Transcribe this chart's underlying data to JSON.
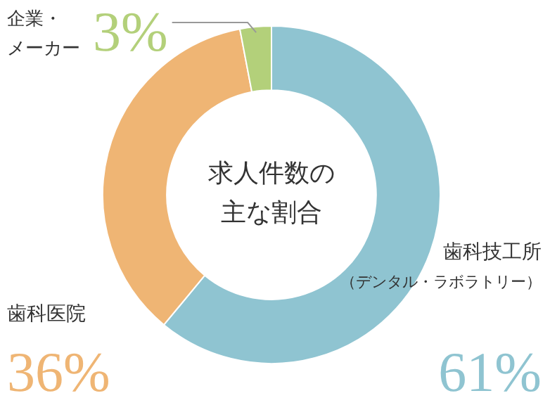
{
  "chart_data": {
    "type": "donut",
    "title": "求人件数の主な割合",
    "categories": [
      "歯科技工所（デンタル・ラボラトリー）",
      "歯科医院",
      "企業・メーカー"
    ],
    "values": [
      61,
      36,
      3
    ],
    "value_labels": [
      "61%",
      "36%",
      "3%"
    ],
    "colors": [
      "#8fc4d1",
      "#efb574",
      "#b3d07a"
    ],
    "legend": false
  }
}
